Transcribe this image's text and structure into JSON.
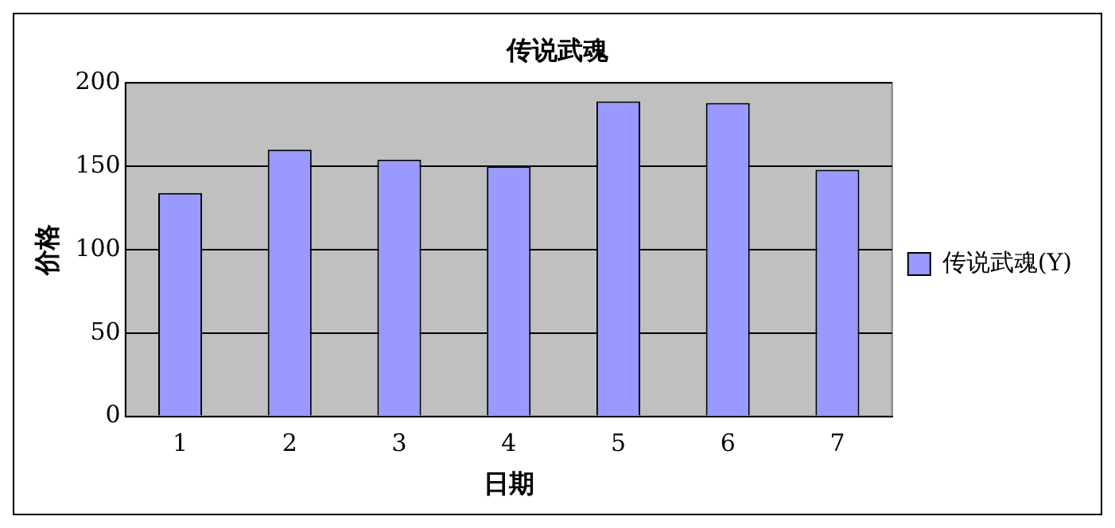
{
  "chart_data": {
    "type": "bar",
    "title": "传说武魂",
    "xlabel": "日期",
    "ylabel": "价格",
    "categories": [
      "1",
      "2",
      "3",
      "4",
      "5",
      "6",
      "7"
    ],
    "series": [
      {
        "name": "传说武魂(Y)",
        "color": "#9999ff",
        "values": [
          134,
          160,
          154,
          150,
          189,
          188,
          148
        ]
      }
    ],
    "ylim": [
      0,
      200
    ],
    "yticks": [
      0,
      50,
      100,
      150,
      200
    ],
    "grid": "y",
    "legend": "right"
  }
}
